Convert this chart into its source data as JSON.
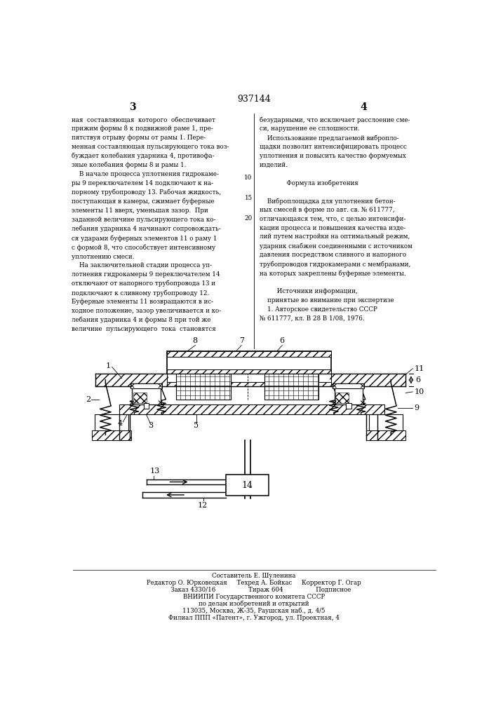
{
  "title": "937144",
  "page_left": "3",
  "page_right": "4",
  "background": "#ffffff",
  "left_column_text": "ная  составляющая  которого  обеспечивает\nприжим формы 8 к подвижной раме 1, пре-\nпятствуя отрыву формы от рамы 1. Пере-\nменная составляющая пульсирующего тока воз-\nбуждает колебания ударника 4, противофа-\nзные колебания формы 8 и рамы 1.\n    В начале процесса уплотнения гидрокаме-\nры 9 переключателем 14 подключают к на-\nпорному трубопроводу 13. Рабочая жидкость,\nпоступающая в камеры, сжимает буферные\nэлементы 11 вверх, уменьшая зазор.  При\nзаданной величине пульсирующего тока ко-\nлебания ударника 4 начинают сопровождать-\nся ударами буферных элементов 11 о раму 1\nс формой 8, что способствует интенсивному\nуплотнению смеси.\n    На заключительной стадии процесса уп-\nлотнения гидрокамеры 9 переключателем 14\nотключают от напорного трубопровода 13 и\nподключают к сливному трубопроводу 12.\nБуферные элементы 11 возвращаются в ис-\nходное положение, зазор увеличивается и ко-\nлебания ударника 4 и формы 8 при той же\nвеличине  пульсирующего  тока  становятся",
  "right_column_text": "безударными, что исключает расслоение сме-\nси, нарушение ее сплошности.\n    Использование предлагаемой вибропло-\nщадки позволит интенсифицировать процесс\nуплотнения и повысить качество формуемых\nизделий.\n\n              Формула изобретения\n\n    Виброплощадка для уплотнения бетон-\nных смесей в форме по авт. св. № 611777,\nотличающаяся тем, что, с целью интенсифи-\nкации процесса и повышения качества изде-\nлий путем настройки на оптимальный режим,\nударник снабжен соединенными с источником\nдавления посредством сливного и напорного\nтрубопроводов гидрокамерами с мембранами,\nна которых закреплены буферные элементы.\n\n         Источники информации,\n    принятые во внимание при экспертизе\n    1. Авторское свидетельство СССР\n№ 611777, кл. В 28 В 1/08, 1976.",
  "footer_line1": "Составитель Е. Шуленина",
  "footer_line2": "Редактор О. Юрковецкая     Техред А. Бойкас     Корректор Г. Огар",
  "footer_line3": "       Заказ 4330/16                 Тираж 604                 Подписное",
  "footer_line4": "ВНИИПИ Государственного комитета СССР",
  "footer_line5": "по делам изобретений и открытий",
  "footer_line6": "113035, Москва, Ж-35, Раушская наб., д. 4/5",
  "footer_line7": "Филиал ППП «Патент», г. Ужгород, ул. Проектная, 4"
}
